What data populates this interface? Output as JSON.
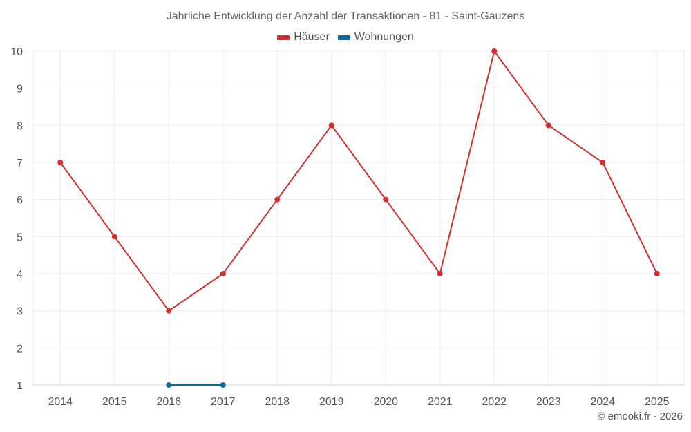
{
  "chart_data": {
    "type": "line",
    "title": "Jährliche Entwicklung der Anzahl der Transaktionen - 81 - Saint-Gauzens",
    "x": [
      "2014",
      "2015",
      "2016",
      "2017",
      "2018",
      "2019",
      "2020",
      "2021",
      "2022",
      "2023",
      "2024",
      "2025"
    ],
    "ylim": [
      1,
      10
    ],
    "yticks": [
      "1",
      "2",
      "3",
      "4",
      "5",
      "6",
      "7",
      "8",
      "9",
      "10"
    ],
    "grid": true,
    "legend_position": "top-center",
    "series": [
      {
        "name": "Häuser",
        "color": "#d32f2f",
        "values": [
          7,
          5,
          3,
          4,
          6,
          8,
          6,
          4,
          10,
          8,
          7,
          4
        ]
      },
      {
        "name": "Wohnungen",
        "color": "#0b6ba0",
        "values": [
          null,
          null,
          1,
          1,
          null,
          null,
          null,
          null,
          null,
          null,
          null,
          null
        ]
      }
    ]
  },
  "credit": "© emooki.fr - 2026"
}
